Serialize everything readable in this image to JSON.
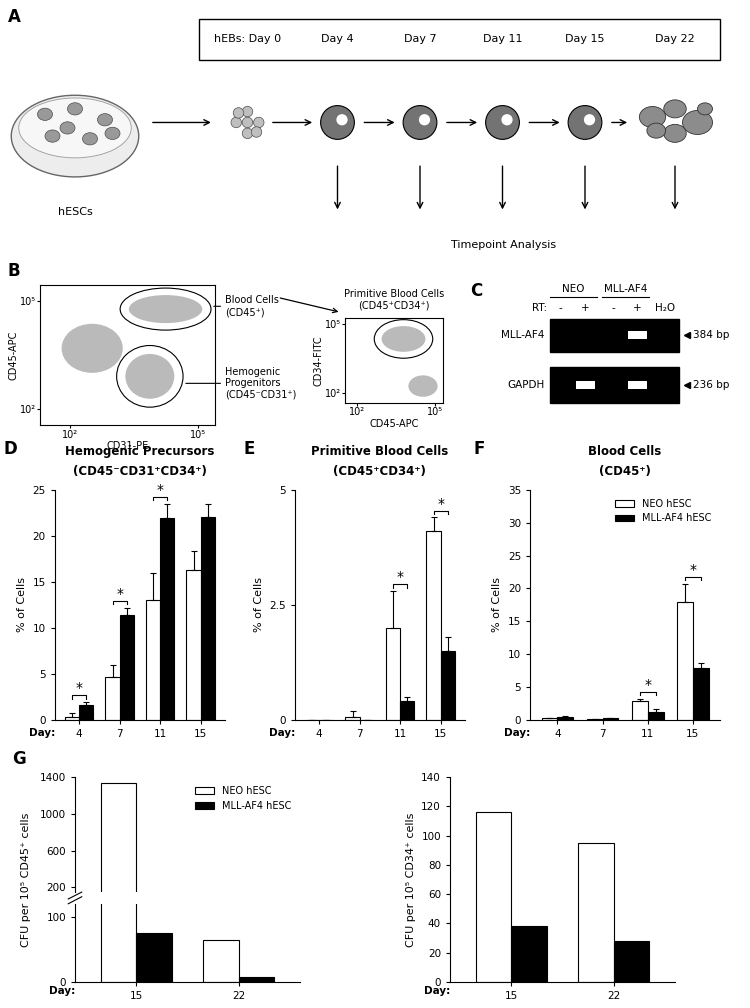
{
  "diagram": {
    "panel": "A",
    "source": "hESCs",
    "timepoints": [
      "hEBs: Day 0",
      "Day 4",
      "Day 7",
      "Day 11",
      "Day 15",
      "Day 22"
    ],
    "analysis": "Timepoint Analysis"
  },
  "flow_cytometry": {
    "panel": "B",
    "plots": [
      {
        "xlabel": "CD31-PE",
        "ylabel": "CD45-APC",
        "log": true,
        "xlim": [
          20,
          250000
        ],
        "ylim": [
          35,
          270000
        ],
        "xticks": [
          {
            "value": 100,
            "label": "10²"
          },
          {
            "value": 100000,
            "label": "10⁵"
          }
        ],
        "yticks": [
          {
            "value": 100,
            "label": "10²"
          },
          {
            "value": 100000,
            "label": "10⁵"
          }
        ],
        "gates": [
          "Blood Cells\n(CD45⁺)",
          "Hemogenic\nProgenitors\n(CD45⁻CD31⁺)"
        ]
      },
      {
        "xlabel": "CD45-APC",
        "ylabel": "CD34-FITC",
        "log": true,
        "xlim": [
          35,
          200000
        ],
        "ylim": [
          35,
          200000
        ],
        "xticks": [
          {
            "value": 100,
            "label": "10²"
          },
          {
            "value": 100000,
            "label": "10⁵"
          }
        ],
        "yticks": [
          {
            "value": 100,
            "label": "10²"
          },
          {
            "value": 100000,
            "label": "10⁵"
          }
        ],
        "gates": [
          "Primitive Blood Cells\n(CD45⁺CD34⁺)"
        ]
      }
    ]
  },
  "gel": {
    "panel": "C",
    "groups": [
      {
        "name": "NEO",
        "lanes": 2
      },
      {
        "name": "MLL-AF4",
        "lanes": 2
      }
    ],
    "rt_label": "RT:",
    "lanes": [
      "-",
      "+",
      "-",
      "+",
      "H₂O"
    ],
    "rows": [
      {
        "label": "MLL-AF4",
        "size": "384 bp",
        "bands": [
          false,
          false,
          false,
          true,
          false
        ]
      },
      {
        "label": "GAPDH",
        "size": "236 bp",
        "bands": [
          false,
          true,
          false,
          true,
          false
        ]
      }
    ]
  },
  "chart_data": [
    {
      "panel": "D",
      "type": "bar",
      "title": "Hemogenic Precursors",
      "subtitle": "(CD45⁻CD31⁺CD34⁺)",
      "x_label": "Day:",
      "y_label": "% of Cells",
      "categories": [
        "4",
        "7",
        "11",
        "15"
      ],
      "series": [
        {
          "name": "NEO hESC",
          "color": "#ffffff",
          "values": [
            0.3,
            4.7,
            13.0,
            16.3
          ],
          "errors": [
            0.4,
            1.3,
            3.0,
            2.0
          ]
        },
        {
          "name": "MLL-AF4 hESC",
          "color": "#000000",
          "values": [
            1.6,
            11.4,
            21.9,
            22.1
          ],
          "errors": [
            0.3,
            0.8,
            1.6,
            1.4
          ]
        }
      ],
      "ylim": [
        0,
        25
      ],
      "yticks": [
        0,
        5,
        10,
        15,
        20,
        25
      ],
      "annotations": [
        {
          "category": "4",
          "text": "*"
        },
        {
          "category": "7",
          "text": "*"
        },
        {
          "category": "11",
          "text": "*"
        }
      ]
    },
    {
      "panel": "E",
      "type": "bar",
      "title": "Primitive Blood Cells",
      "subtitle": "(CD45⁺CD34⁺)",
      "x_label": "Day:",
      "y_label": "% of Cells",
      "categories": [
        "4",
        "7",
        "11",
        "15"
      ],
      "series": [
        {
          "name": "NEO hESC",
          "color": "#ffffff",
          "values": [
            0,
            0.05,
            2.0,
            4.1
          ],
          "errors": [
            0,
            0.15,
            0.8,
            0.3
          ]
        },
        {
          "name": "MLL-AF4 hESC",
          "color": "#000000",
          "values": [
            0,
            0,
            0.4,
            1.5
          ],
          "errors": [
            0,
            0,
            0.1,
            0.3
          ]
        }
      ],
      "ylim": [
        0,
        5
      ],
      "yticks": [
        0,
        2.5,
        5
      ],
      "annotations": [
        {
          "category": "11",
          "text": "*"
        },
        {
          "category": "15",
          "text": "*"
        }
      ]
    },
    {
      "panel": "F",
      "type": "bar",
      "title": "Blood Cells",
      "subtitle": "(CD45⁺)",
      "x_label": "Day:",
      "y_label": "% of Cells",
      "categories": [
        "4",
        "7",
        "11",
        "15"
      ],
      "series": [
        {
          "name": "NEO hESC",
          "color": "#ffffff",
          "values": [
            0.2,
            0.1,
            2.8,
            18.0
          ],
          "errors": [
            0.1,
            0.05,
            0.4,
            2.7
          ]
        },
        {
          "name": "MLL-AF4 hESC",
          "color": "#000000",
          "values": [
            0.4,
            0.2,
            1.2,
            7.8
          ],
          "errors": [
            0.1,
            0.05,
            0.4,
            0.9
          ]
        }
      ],
      "ylim": [
        0,
        35
      ],
      "yticks": [
        0,
        5,
        10,
        15,
        20,
        25,
        30,
        35
      ],
      "legend": "upper right",
      "annotations": [
        {
          "category": "11",
          "text": "*"
        },
        {
          "category": "15",
          "text": "*"
        }
      ]
    },
    {
      "panel": "G",
      "type": "bar",
      "x_label": "Day:",
      "y_label": "CFU per 10⁵ CD45⁺ cells",
      "categories": [
        "15",
        "22"
      ],
      "series": [
        {
          "name": "NEO hESC",
          "color": "#ffffff",
          "values": [
            1340,
            65
          ]
        },
        {
          "name": "MLL-AF4 hESC",
          "color": "#000000",
          "values": [
            75,
            8
          ]
        }
      ],
      "ylim": [
        0,
        1400
      ],
      "ybreak": [
        120,
        150
      ],
      "yticks": [
        0,
        100,
        200,
        600,
        1000,
        1400
      ],
      "legend": "upper right"
    },
    {
      "type": "bar",
      "x_label": "Day:",
      "y_label": "CFU per 10⁵ CD34⁺ cells",
      "categories": [
        "15",
        "22"
      ],
      "series": [
        {
          "name": "NEO hESC",
          "color": "#ffffff",
          "values": [
            116,
            95
          ]
        },
        {
          "name": "MLL-AF4 hESC",
          "color": "#000000",
          "values": [
            38,
            28
          ]
        }
      ],
      "ylim": [
        0,
        140
      ],
      "yticks": [
        0,
        20,
        40,
        60,
        80,
        100,
        120,
        140
      ]
    }
  ]
}
